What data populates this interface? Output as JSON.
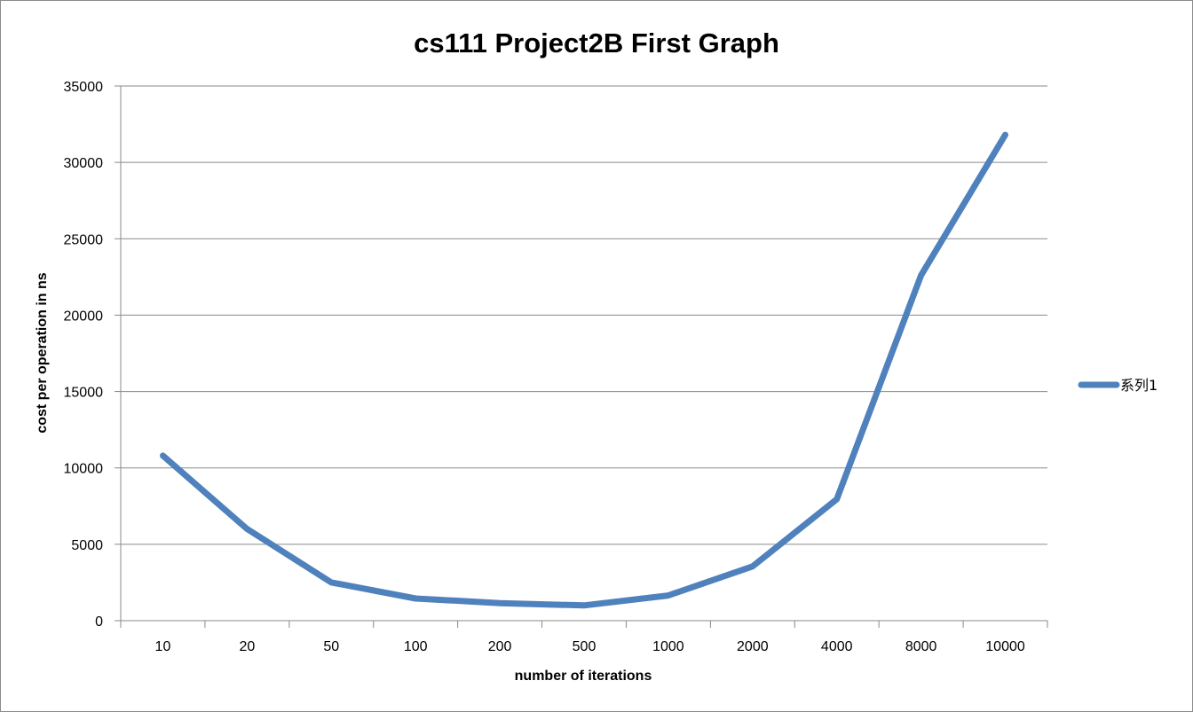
{
  "chart_data": {
    "type": "line",
    "title": "cs111 Project2B First Graph",
    "xlabel": "number of iterations",
    "ylabel": "cost per operation in ns",
    "categories": [
      "10",
      "20",
      "50",
      "100",
      "200",
      "500",
      "1000",
      "2000",
      "4000",
      "8000",
      "10000"
    ],
    "series": [
      {
        "name": "系列1",
        "color": "#4f81bd",
        "values": [
          10800,
          6000,
          2500,
          1450,
          1150,
          1000,
          1650,
          3550,
          7950,
          22600,
          31800
        ]
      }
    ],
    "ylim": [
      0,
      35000
    ],
    "yticks": [
      0,
      5000,
      10000,
      15000,
      20000,
      25000,
      30000,
      35000
    ],
    "grid": true,
    "legend": "right"
  }
}
